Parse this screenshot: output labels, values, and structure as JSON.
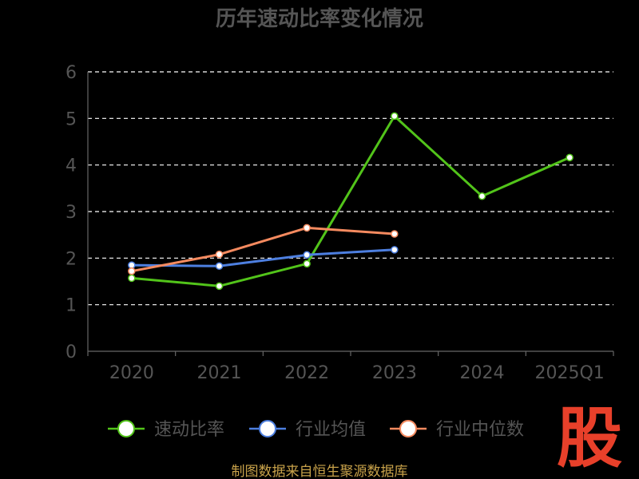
{
  "chart_data": {
    "type": "line",
    "title": "历年速动比率变化情况",
    "categories": [
      "2020",
      "2021",
      "2022",
      "2023",
      "2024",
      "2025Q1"
    ],
    "ylim": [
      0,
      6
    ],
    "yticks": [
      "0",
      "1",
      "2",
      "3",
      "4",
      "5",
      "6"
    ],
    "grid": true,
    "legend_position": "bottom",
    "series": [
      {
        "name": "速动比率",
        "color": "#52c41a",
        "values": [
          1.57,
          1.4,
          1.88,
          5.05,
          3.33,
          4.16
        ]
      },
      {
        "name": "行业均值",
        "color": "#4d7fe0",
        "values": [
          1.85,
          1.83,
          2.07,
          2.18,
          null,
          null
        ]
      },
      {
        "name": "行业中位数",
        "color": "#f58a5f",
        "values": [
          1.72,
          2.08,
          2.65,
          2.52,
          null,
          null
        ]
      }
    ]
  },
  "source_note": "制图数据来自恒生聚源数据库",
  "watermark": "股",
  "colors": {
    "background": "#000000",
    "text": "#555555",
    "grid": "#ffffff",
    "watermark": "#e8402a",
    "source": "#c8a24a"
  }
}
